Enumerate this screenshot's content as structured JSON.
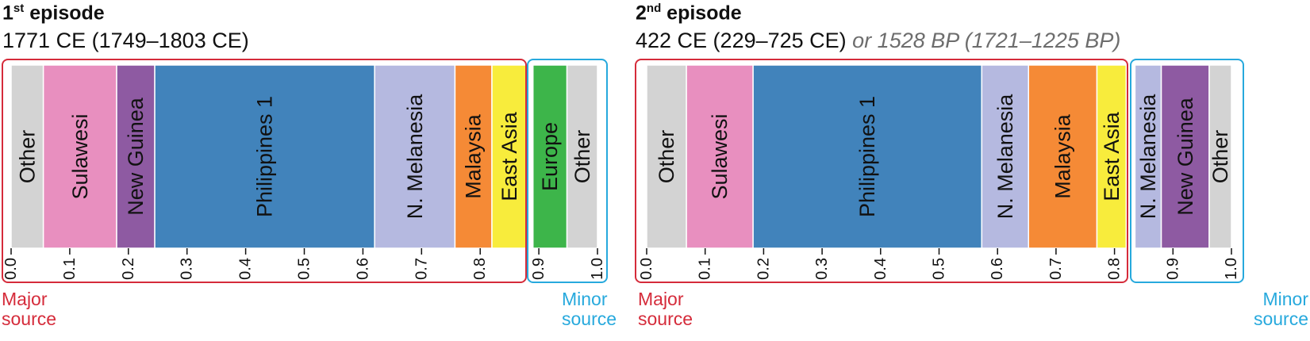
{
  "panels": [
    {
      "title_num": "1",
      "title_sup": "st",
      "title_rest": " episode",
      "date_main": "1771 CE (1749–1803 CE)",
      "date_alt": "",
      "major_label": [
        "Major",
        "source"
      ],
      "minor_label": [
        "Minor",
        "source"
      ],
      "minor_label_align": "left"
    },
    {
      "title_num": "2",
      "title_sup": "nd",
      "title_rest": " episode",
      "date_main": "422 CE (229–725 CE) ",
      "date_alt": "or 1528 BP (1721–1225 BP)",
      "major_label": [
        "Major",
        "source"
      ],
      "minor_label": [
        "Minor",
        "source"
      ],
      "minor_label_align": "right"
    }
  ],
  "colors": {
    "major_box": "#d52b3a",
    "minor_box": "#27a9dd",
    "Other": "#d3d3d3",
    "Sulawesi": "#e88fbf",
    "New Guinea": "#8e5aa2",
    "Philippines 1": "#4183bb",
    "N. Melanesia": "#b5b9e0",
    "Malaysia": "#f58a36",
    "East Asia": "#f8ec3c",
    "Europe": "#3db54a"
  },
  "chart_data": [
    {
      "type": "bar",
      "orientation": "stacked-horizontal",
      "title": "1st episode",
      "xlim": [
        0,
        1
      ],
      "x_ticks": [
        "0.0",
        "0.1",
        "0.2",
        "0.3",
        "0.4",
        "0.5",
        "0.6",
        "0.7",
        "0.8",
        "0.9",
        "1.0"
      ],
      "minor_split": 0.88,
      "series": [
        {
          "name": "Other",
          "start": 0.0,
          "end": 0.055
        },
        {
          "name": "Sulawesi",
          "start": 0.055,
          "end": 0.18
        },
        {
          "name": "New Guinea",
          "start": 0.18,
          "end": 0.245
        },
        {
          "name": "Philippines 1",
          "start": 0.245,
          "end": 0.62
        },
        {
          "name": "N. Melanesia",
          "start": 0.62,
          "end": 0.757
        },
        {
          "name": "Malaysia",
          "start": 0.757,
          "end": 0.82
        },
        {
          "name": "East Asia",
          "start": 0.82,
          "end": 0.88
        },
        {
          "name": "Europe",
          "start": 0.89,
          "end": 0.948
        },
        {
          "name": "Other",
          "start": 0.948,
          "end": 1.0
        }
      ]
    },
    {
      "type": "bar",
      "orientation": "stacked-horizontal",
      "title": "2nd episode",
      "xlim": [
        0,
        1
      ],
      "x_ticks": [
        "0.0",
        "0.1",
        "0.2",
        "0.3",
        "0.4",
        "0.5",
        "0.6",
        "0.7",
        "0.8",
        "0.9",
        "1.0"
      ],
      "minor_split": 0.82,
      "series": [
        {
          "name": "Other",
          "start": 0.0,
          "end": 0.068
        },
        {
          "name": "Sulawesi",
          "start": 0.068,
          "end": 0.182
        },
        {
          "name": "Philippines 1",
          "start": 0.182,
          "end": 0.573
        },
        {
          "name": "N. Melanesia",
          "start": 0.573,
          "end": 0.653
        },
        {
          "name": "Malaysia",
          "start": 0.653,
          "end": 0.77
        },
        {
          "name": "East Asia",
          "start": 0.77,
          "end": 0.82
        },
        {
          "name": "N. Melanesia",
          "start": 0.835,
          "end": 0.88
        },
        {
          "name": "New Guinea",
          "start": 0.88,
          "end": 0.962
        },
        {
          "name": "Other",
          "start": 0.962,
          "end": 1.0
        }
      ]
    }
  ]
}
